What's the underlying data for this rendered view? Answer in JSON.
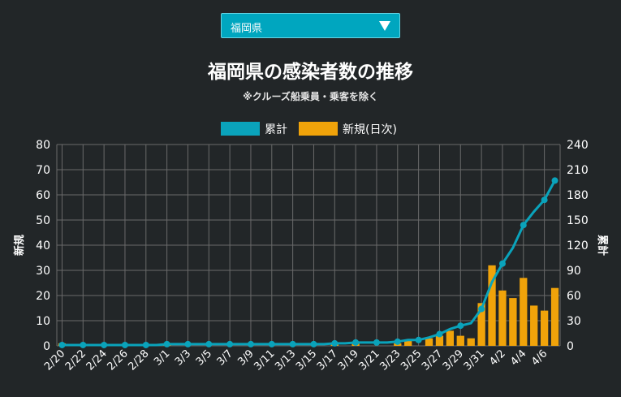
{
  "prefecture_select": {
    "value": "福岡県"
  },
  "header": {
    "title": "福岡県の感染者数の推移",
    "subtitle": "※クルーズ船乗員・乗客を除く"
  },
  "colors": {
    "cumulative": "#0aa3bb",
    "daily": "#f0a30a",
    "grid": "#6a6a6a",
    "text": "#ffffff"
  },
  "chart_data": {
    "type": "bar",
    "title": "福岡県の感染者数の推移",
    "subtitle": "※クルーズ船乗員・乗客を除く",
    "categories": [
      "2/20",
      "2/21",
      "2/22",
      "2/23",
      "2/24",
      "2/25",
      "2/26",
      "2/27",
      "2/28",
      "2/29",
      "3/1",
      "3/2",
      "3/3",
      "3/4",
      "3/5",
      "3/6",
      "3/7",
      "3/8",
      "3/9",
      "3/10",
      "3/11",
      "3/12",
      "3/13",
      "3/14",
      "3/15",
      "3/16",
      "3/17",
      "3/18",
      "3/19",
      "3/20",
      "3/21",
      "3/22",
      "3/23",
      "3/24",
      "3/25",
      "3/26",
      "3/27",
      "3/28",
      "3/29",
      "3/30",
      "3/31",
      "4/1",
      "4/2",
      "4/3",
      "4/4",
      "4/5",
      "4/6",
      "4/7"
    ],
    "tick_labels": [
      "2/20",
      "2/22",
      "2/24",
      "2/26",
      "2/28",
      "3/1",
      "3/3",
      "3/5",
      "3/7",
      "3/9",
      "3/11",
      "3/13",
      "3/15",
      "3/17",
      "3/19",
      "3/21",
      "3/23",
      "3/25",
      "3/27",
      "3/29",
      "3/31",
      "4/2",
      "4/4",
      "4/6"
    ],
    "series": [
      {
        "name": "新規(日次)",
        "type": "bar",
        "axis": "left",
        "values": [
          1,
          0,
          0,
          0,
          0,
          0,
          0,
          0,
          0,
          0,
          1,
          0,
          0,
          0,
          0,
          0,
          0,
          0,
          0,
          0,
          0,
          0,
          0,
          0,
          0,
          0,
          1,
          0,
          1,
          0,
          0,
          0,
          1,
          2,
          0,
          3,
          4,
          6,
          4,
          3,
          17,
          32,
          22,
          19,
          27,
          16,
          14,
          23
        ]
      },
      {
        "name": "累計",
        "type": "line",
        "axis": "right",
        "values": [
          1,
          1,
          1,
          1,
          1,
          1,
          1,
          1,
          1,
          1,
          2,
          2,
          2,
          2,
          2,
          2,
          2,
          2,
          2,
          2,
          2,
          2,
          2,
          2,
          2,
          2,
          3,
          3,
          4,
          4,
          4,
          4,
          5,
          7,
          7,
          10,
          14,
          20,
          24,
          27,
          44,
          76,
          98,
          117,
          144,
          160,
          174,
          197
        ]
      }
    ],
    "legend": [
      "累計",
      "新規(日次)"
    ],
    "legend_position": "top",
    "ylabel_left": "新規",
    "ylabel_right": "累計",
    "ylim_left": [
      0,
      80
    ],
    "ylim_right": [
      0,
      240
    ],
    "yticks_left": [
      0,
      10,
      20,
      30,
      40,
      50,
      60,
      70,
      80
    ],
    "yticks_right": [
      0,
      30,
      60,
      90,
      120,
      150,
      180,
      210,
      240
    ],
    "grid": true
  }
}
